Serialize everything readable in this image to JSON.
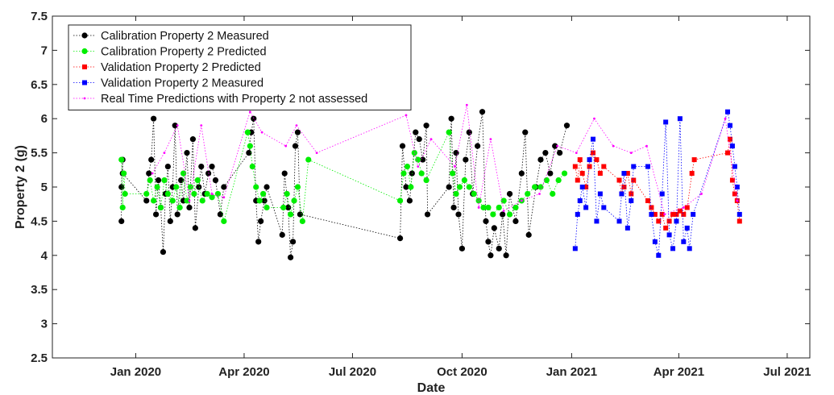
{
  "chart_data": {
    "type": "scatter",
    "xlabel": "Date",
    "ylabel": "Property 2 (g)",
    "xlim": [
      "2019-10-23",
      "2021-07-20"
    ],
    "ylim": [
      2.5,
      7.5
    ],
    "y_ticks": [
      2.5,
      3,
      3.5,
      4,
      4.5,
      5,
      5.5,
      6,
      6.5,
      7,
      7.5
    ],
    "x_ticks": [
      {
        "date": "2020-01-01",
        "label": "Jan 2020"
      },
      {
        "date": "2020-04-01",
        "label": "Apr 2020"
      },
      {
        "date": "2020-07-01",
        "label": "Jul 2020"
      },
      {
        "date": "2020-10-01",
        "label": "Oct 2020"
      },
      {
        "date": "2021-01-01",
        "label": "Jan 2021"
      },
      {
        "date": "2021-04-01",
        "label": "Apr 2021"
      },
      {
        "date": "2021-07-01",
        "label": "Jul 2021"
      }
    ],
    "grid": false,
    "legend_position": "top-left",
    "series": [
      {
        "name": "Calibration Property 2 Measured",
        "color": "#000000",
        "marker": "circle",
        "points": [
          [
            "2019-12-20",
            4.5
          ],
          [
            "2019-12-20",
            5.0
          ],
          [
            "2019-12-21",
            5.4
          ],
          [
            "2019-12-21",
            5.2
          ],
          [
            "2020-01-10",
            4.8
          ],
          [
            "2020-01-12",
            5.2
          ],
          [
            "2020-01-14",
            5.4
          ],
          [
            "2020-01-16",
            6.0
          ],
          [
            "2020-01-18",
            4.6
          ],
          [
            "2020-01-20",
            5.1
          ],
          [
            "2020-01-22",
            4.7
          ],
          [
            "2020-01-24",
            4.05
          ],
          [
            "2020-01-26",
            4.9
          ],
          [
            "2020-01-28",
            5.3
          ],
          [
            "2020-01-30",
            4.5
          ],
          [
            "2020-02-01",
            5.0
          ],
          [
            "2020-02-03",
            5.9
          ],
          [
            "2020-02-05",
            4.6
          ],
          [
            "2020-02-08",
            5.1
          ],
          [
            "2020-02-10",
            4.8
          ],
          [
            "2020-02-13",
            5.5
          ],
          [
            "2020-02-15",
            4.7
          ],
          [
            "2020-02-18",
            5.7
          ],
          [
            "2020-02-20",
            4.4
          ],
          [
            "2020-02-23",
            5.0
          ],
          [
            "2020-02-25",
            5.3
          ],
          [
            "2020-02-28",
            4.9
          ],
          [
            "2020-03-02",
            5.2
          ],
          [
            "2020-03-05",
            5.3
          ],
          [
            "2020-03-08",
            5.1
          ],
          [
            "2020-03-12",
            4.6
          ],
          [
            "2020-03-15",
            5.0
          ],
          [
            "2020-04-05",
            5.5
          ],
          [
            "2020-04-07",
            5.8
          ],
          [
            "2020-04-09",
            6.0
          ],
          [
            "2020-04-11",
            4.8
          ],
          [
            "2020-04-13",
            4.2
          ],
          [
            "2020-04-15",
            4.5
          ],
          [
            "2020-04-18",
            4.8
          ],
          [
            "2020-04-20",
            5.0
          ],
          [
            "2020-05-03",
            4.3
          ],
          [
            "2020-05-05",
            5.2
          ],
          [
            "2020-05-08",
            4.7
          ],
          [
            "2020-05-10",
            3.97
          ],
          [
            "2020-05-12",
            4.2
          ],
          [
            "2020-05-14",
            5.6
          ],
          [
            "2020-05-16",
            5.8
          ],
          [
            "2020-05-18",
            4.6
          ],
          [
            "2020-08-10",
            4.25
          ],
          [
            "2020-08-12",
            5.6
          ],
          [
            "2020-08-15",
            5.0
          ],
          [
            "2020-08-18",
            4.8
          ],
          [
            "2020-08-20",
            5.2
          ],
          [
            "2020-08-23",
            5.8
          ],
          [
            "2020-08-26",
            5.7
          ],
          [
            "2020-08-29",
            5.4
          ],
          [
            "2020-09-01",
            5.9
          ],
          [
            "2020-09-02",
            4.6
          ],
          [
            "2020-09-20",
            5.0
          ],
          [
            "2020-09-22",
            6.0
          ],
          [
            "2020-09-24",
            4.7
          ],
          [
            "2020-09-26",
            5.5
          ],
          [
            "2020-09-28",
            4.6
          ],
          [
            "2020-10-01",
            4.1
          ],
          [
            "2020-10-04",
            5.4
          ],
          [
            "2020-10-07",
            5.8
          ],
          [
            "2020-10-10",
            4.9
          ],
          [
            "2020-10-14",
            5.6
          ],
          [
            "2020-10-18",
            6.1
          ],
          [
            "2020-10-21",
            4.5
          ],
          [
            "2020-10-23",
            4.2
          ],
          [
            "2020-10-25",
            4.0
          ],
          [
            "2020-10-28",
            4.4
          ],
          [
            "2020-11-01",
            4.1
          ],
          [
            "2020-11-04",
            4.6
          ],
          [
            "2020-11-07",
            4.0
          ],
          [
            "2020-11-10",
            4.9
          ],
          [
            "2020-11-15",
            4.5
          ],
          [
            "2020-11-20",
            5.2
          ],
          [
            "2020-11-23",
            5.8
          ],
          [
            "2020-11-26",
            4.3
          ],
          [
            "2020-12-02",
            5.0
          ],
          [
            "2020-12-06",
            5.4
          ],
          [
            "2020-12-10",
            5.5
          ],
          [
            "2020-12-14",
            5.2
          ],
          [
            "2020-12-18",
            5.6
          ],
          [
            "2020-12-22",
            5.5
          ],
          [
            "2020-12-28",
            5.9
          ]
        ]
      },
      {
        "name": "Calibration Property 2 Predicted",
        "color": "#00ee00",
        "marker": "circle",
        "points": [
          [
            "2019-12-20",
            5.4
          ],
          [
            "2019-12-21",
            4.7
          ],
          [
            "2019-12-22",
            5.2
          ],
          [
            "2019-12-23",
            4.9
          ],
          [
            "2020-01-10",
            4.9
          ],
          [
            "2020-01-13",
            5.1
          ],
          [
            "2020-01-16",
            4.8
          ],
          [
            "2020-01-19",
            5.0
          ],
          [
            "2020-01-22",
            4.7
          ],
          [
            "2020-01-25",
            5.1
          ],
          [
            "2020-01-28",
            4.9
          ],
          [
            "2020-02-01",
            4.8
          ],
          [
            "2020-02-04",
            5.0
          ],
          [
            "2020-02-07",
            4.7
          ],
          [
            "2020-02-10",
            5.2
          ],
          [
            "2020-02-13",
            4.8
          ],
          [
            "2020-02-16",
            5.0
          ],
          [
            "2020-02-19",
            4.9
          ],
          [
            "2020-02-22",
            5.1
          ],
          [
            "2020-02-26",
            4.8
          ],
          [
            "2020-03-01",
            4.9
          ],
          [
            "2020-03-05",
            4.85
          ],
          [
            "2020-03-10",
            4.9
          ],
          [
            "2020-03-15",
            4.5
          ],
          [
            "2020-04-04",
            5.8
          ],
          [
            "2020-04-06",
            5.6
          ],
          [
            "2020-04-08",
            5.3
          ],
          [
            "2020-04-11",
            5.0
          ],
          [
            "2020-04-14",
            4.8
          ],
          [
            "2020-04-17",
            4.9
          ],
          [
            "2020-04-20",
            4.7
          ],
          [
            "2020-05-04",
            4.7
          ],
          [
            "2020-05-07",
            4.9
          ],
          [
            "2020-05-10",
            4.6
          ],
          [
            "2020-05-13",
            4.8
          ],
          [
            "2020-05-16",
            5.0
          ],
          [
            "2020-05-20",
            4.5
          ],
          [
            "2020-05-25",
            5.4
          ],
          [
            "2020-08-10",
            4.8
          ],
          [
            "2020-08-13",
            5.2
          ],
          [
            "2020-08-16",
            5.3
          ],
          [
            "2020-08-19",
            5.0
          ],
          [
            "2020-08-22",
            5.5
          ],
          [
            "2020-08-25",
            5.4
          ],
          [
            "2020-08-28",
            5.2
          ],
          [
            "2020-09-01",
            5.1
          ],
          [
            "2020-09-20",
            5.8
          ],
          [
            "2020-09-23",
            5.2
          ],
          [
            "2020-09-26",
            4.9
          ],
          [
            "2020-09-29",
            5.0
          ],
          [
            "2020-10-03",
            5.1
          ],
          [
            "2020-10-07",
            5.0
          ],
          [
            "2020-10-11",
            4.9
          ],
          [
            "2020-10-15",
            4.8
          ],
          [
            "2020-10-19",
            4.7
          ],
          [
            "2020-10-23",
            4.7
          ],
          [
            "2020-10-27",
            4.6
          ],
          [
            "2020-11-01",
            4.7
          ],
          [
            "2020-11-05",
            4.8
          ],
          [
            "2020-11-10",
            4.6
          ],
          [
            "2020-11-15",
            4.7
          ],
          [
            "2020-11-20",
            4.8
          ],
          [
            "2020-11-25",
            4.9
          ],
          [
            "2020-12-01",
            5.0
          ],
          [
            "2020-12-06",
            5.0
          ],
          [
            "2020-12-11",
            5.1
          ],
          [
            "2020-12-16",
            4.9
          ],
          [
            "2020-12-21",
            5.1
          ],
          [
            "2020-12-26",
            5.2
          ]
        ]
      },
      {
        "name": "Validation Property 2 Predicted",
        "color": "#ff0000",
        "marker": "square",
        "points": [
          [
            "2021-01-04",
            5.3
          ],
          [
            "2021-01-06",
            5.1
          ],
          [
            "2021-01-08",
            5.4
          ],
          [
            "2021-01-10",
            5.2
          ],
          [
            "2021-01-13",
            5.0
          ],
          [
            "2021-01-16",
            5.3
          ],
          [
            "2021-01-19",
            5.5
          ],
          [
            "2021-01-22",
            5.4
          ],
          [
            "2021-01-25",
            5.2
          ],
          [
            "2021-01-28",
            5.3
          ],
          [
            "2021-02-10",
            5.1
          ],
          [
            "2021-02-12",
            4.9
          ],
          [
            "2021-02-14",
            5.0
          ],
          [
            "2021-02-17",
            5.2
          ],
          [
            "2021-02-20",
            4.9
          ],
          [
            "2021-02-22",
            5.1
          ],
          [
            "2021-03-06",
            4.8
          ],
          [
            "2021-03-09",
            4.7
          ],
          [
            "2021-03-12",
            4.6
          ],
          [
            "2021-03-15",
            4.5
          ],
          [
            "2021-03-18",
            4.6
          ],
          [
            "2021-03-21",
            4.4
          ],
          [
            "2021-03-24",
            4.5
          ],
          [
            "2021-03-27",
            4.6
          ],
          [
            "2021-03-30",
            4.6
          ],
          [
            "2021-04-02",
            4.65
          ],
          [
            "2021-04-05",
            4.6
          ],
          [
            "2021-04-08",
            4.7
          ],
          [
            "2021-04-12",
            5.2
          ],
          [
            "2021-04-14",
            5.4
          ],
          [
            "2021-05-12",
            5.5
          ],
          [
            "2021-05-14",
            5.7
          ],
          [
            "2021-05-16",
            5.1
          ],
          [
            "2021-05-18",
            4.9
          ],
          [
            "2021-05-20",
            4.8
          ],
          [
            "2021-05-22",
            4.5
          ]
        ]
      },
      {
        "name": "Validation Property 2 Measured",
        "color": "#0000ff",
        "marker": "square",
        "points": [
          [
            "2021-01-04",
            4.1
          ],
          [
            "2021-01-06",
            4.6
          ],
          [
            "2021-01-08",
            4.8
          ],
          [
            "2021-01-10",
            5.0
          ],
          [
            "2021-01-13",
            4.7
          ],
          [
            "2021-01-16",
            5.4
          ],
          [
            "2021-01-19",
            5.7
          ],
          [
            "2021-01-22",
            4.5
          ],
          [
            "2021-01-25",
            4.9
          ],
          [
            "2021-01-28",
            4.7
          ],
          [
            "2021-02-10",
            4.5
          ],
          [
            "2021-02-12",
            4.9
          ],
          [
            "2021-02-14",
            5.2
          ],
          [
            "2021-02-17",
            4.4
          ],
          [
            "2021-02-20",
            4.8
          ],
          [
            "2021-02-22",
            5.3
          ],
          [
            "2021-03-06",
            5.3
          ],
          [
            "2021-03-09",
            4.6
          ],
          [
            "2021-03-12",
            4.2
          ],
          [
            "2021-03-15",
            4.0
          ],
          [
            "2021-03-18",
            4.9
          ],
          [
            "2021-03-21",
            5.95
          ],
          [
            "2021-03-24",
            4.3
          ],
          [
            "2021-03-27",
            4.1
          ],
          [
            "2021-03-30",
            4.5
          ],
          [
            "2021-04-02",
            6.0
          ],
          [
            "2021-04-05",
            4.2
          ],
          [
            "2021-04-08",
            4.4
          ],
          [
            "2021-04-10",
            4.1
          ],
          [
            "2021-04-13",
            4.6
          ],
          [
            "2021-05-12",
            6.1
          ],
          [
            "2021-05-14",
            5.9
          ],
          [
            "2021-05-16",
            5.6
          ],
          [
            "2021-05-18",
            5.3
          ],
          [
            "2021-05-20",
            5.0
          ],
          [
            "2021-05-22",
            4.6
          ]
        ]
      },
      {
        "name": "Real Time Predictions with Property 2 not assessed",
        "color": "#ff00ff",
        "marker": "dot",
        "points": [
          [
            "2020-01-15",
            5.2
          ],
          [
            "2020-01-25",
            5.5
          ],
          [
            "2020-02-05",
            5.9
          ],
          [
            "2020-02-15",
            4.8
          ],
          [
            "2020-02-25",
            5.9
          ],
          [
            "2020-03-05",
            4.9
          ],
          [
            "2020-03-15",
            4.85
          ],
          [
            "2020-04-06",
            6.1
          ],
          [
            "2020-04-16",
            5.8
          ],
          [
            "2020-05-06",
            5.6
          ],
          [
            "2020-05-15",
            5.9
          ],
          [
            "2020-06-01",
            5.5
          ],
          [
            "2020-08-15",
            6.05
          ],
          [
            "2020-08-25",
            5.3
          ],
          [
            "2020-09-05",
            5.7
          ],
          [
            "2020-09-25",
            5.3
          ],
          [
            "2020-10-05",
            6.2
          ],
          [
            "2020-10-15",
            4.7
          ],
          [
            "2020-10-25",
            5.7
          ],
          [
            "2020-11-05",
            4.65
          ],
          [
            "2020-11-20",
            4.8
          ],
          [
            "2020-12-05",
            4.9
          ],
          [
            "2020-12-20",
            5.6
          ],
          [
            "2021-01-05",
            5.5
          ],
          [
            "2021-01-20",
            6.0
          ],
          [
            "2021-02-05",
            5.6
          ],
          [
            "2021-02-20",
            5.5
          ],
          [
            "2021-03-05",
            5.6
          ],
          [
            "2021-03-20",
            4.6
          ],
          [
            "2021-04-05",
            4.7
          ],
          [
            "2021-04-20",
            4.9
          ],
          [
            "2021-05-10",
            6.0
          ],
          [
            "2021-05-20",
            4.8
          ]
        ]
      }
    ]
  }
}
